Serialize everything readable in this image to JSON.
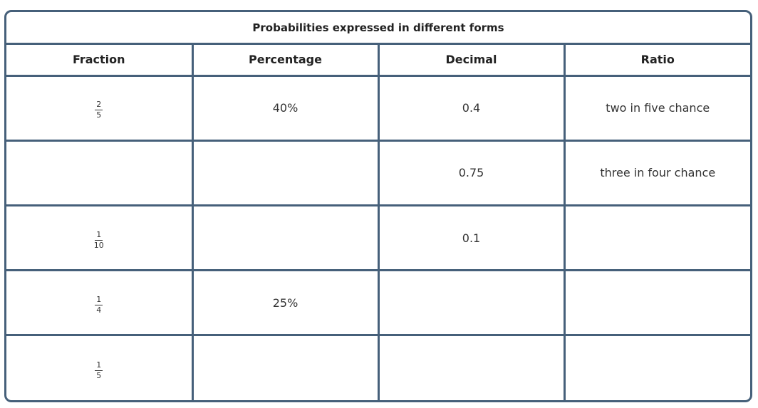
{
  "title": "Probabilities expressed in different forms",
  "columns": [
    "Fraction",
    "Percentage",
    "Decimal",
    "Ratio"
  ],
  "rows": [
    {
      "fraction": {
        "num": "2",
        "den": "5"
      },
      "percentage": "40%",
      "decimal": "0.4",
      "ratio": "two in five chance"
    },
    {
      "fraction": {
        "num": "",
        "den": ""
      },
      "percentage": "",
      "decimal": "0.75",
      "ratio": "three in four chance"
    },
    {
      "fraction": {
        "num": "1",
        "den": "10"
      },
      "percentage": "",
      "decimal": "0.1",
      "ratio": ""
    },
    {
      "fraction": {
        "num": "1",
        "den": "4"
      },
      "percentage": "25%",
      "decimal": "",
      "ratio": ""
    },
    {
      "fraction": {
        "num": "1",
        "den": "5"
      },
      "percentage": "",
      "decimal": "",
      "ratio": ""
    }
  ],
  "colors": {
    "border": "#46607a",
    "text": "#333333"
  }
}
